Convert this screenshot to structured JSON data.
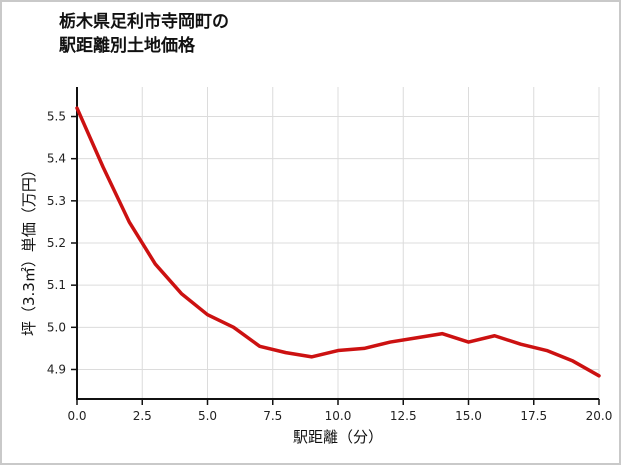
{
  "chart_data": {
    "type": "line",
    "title": "栃木県足利市寺岡町の駅距離別土地価格",
    "title_lines": [
      "栃木県足利市寺岡町の",
      "駅距離別土地価格"
    ],
    "xlabel": "駅距離（分）",
    "ylabel": "坪（3.3㎡）単価（万円）",
    "x": [
      0,
      1,
      2,
      3,
      4,
      5,
      6,
      7,
      8,
      9,
      10,
      11,
      12,
      13,
      14,
      15,
      16,
      17,
      18,
      19,
      20
    ],
    "y": [
      5.52,
      5.38,
      5.25,
      5.15,
      5.08,
      5.03,
      5.0,
      4.955,
      4.94,
      4.93,
      4.945,
      4.95,
      4.965,
      4.975,
      4.985,
      4.965,
      4.98,
      4.96,
      4.945,
      4.92,
      4.885
    ],
    "xlim": [
      0,
      20
    ],
    "ylim": [
      4.83,
      5.57
    ],
    "x_ticks": [
      "0.0",
      "2.5",
      "5.0",
      "7.5",
      "10.0",
      "12.5",
      "15.0",
      "17.5",
      "20.0"
    ],
    "y_ticks": [
      "4.9",
      "5.0",
      "5.1",
      "5.2",
      "5.3",
      "5.4",
      "5.5"
    ],
    "line_color": "#cc1111",
    "grid": true,
    "grid_color": "#dcdcdc",
    "axis_color": "#111111",
    "tick_label_color": "#222222",
    "legend": "none"
  }
}
